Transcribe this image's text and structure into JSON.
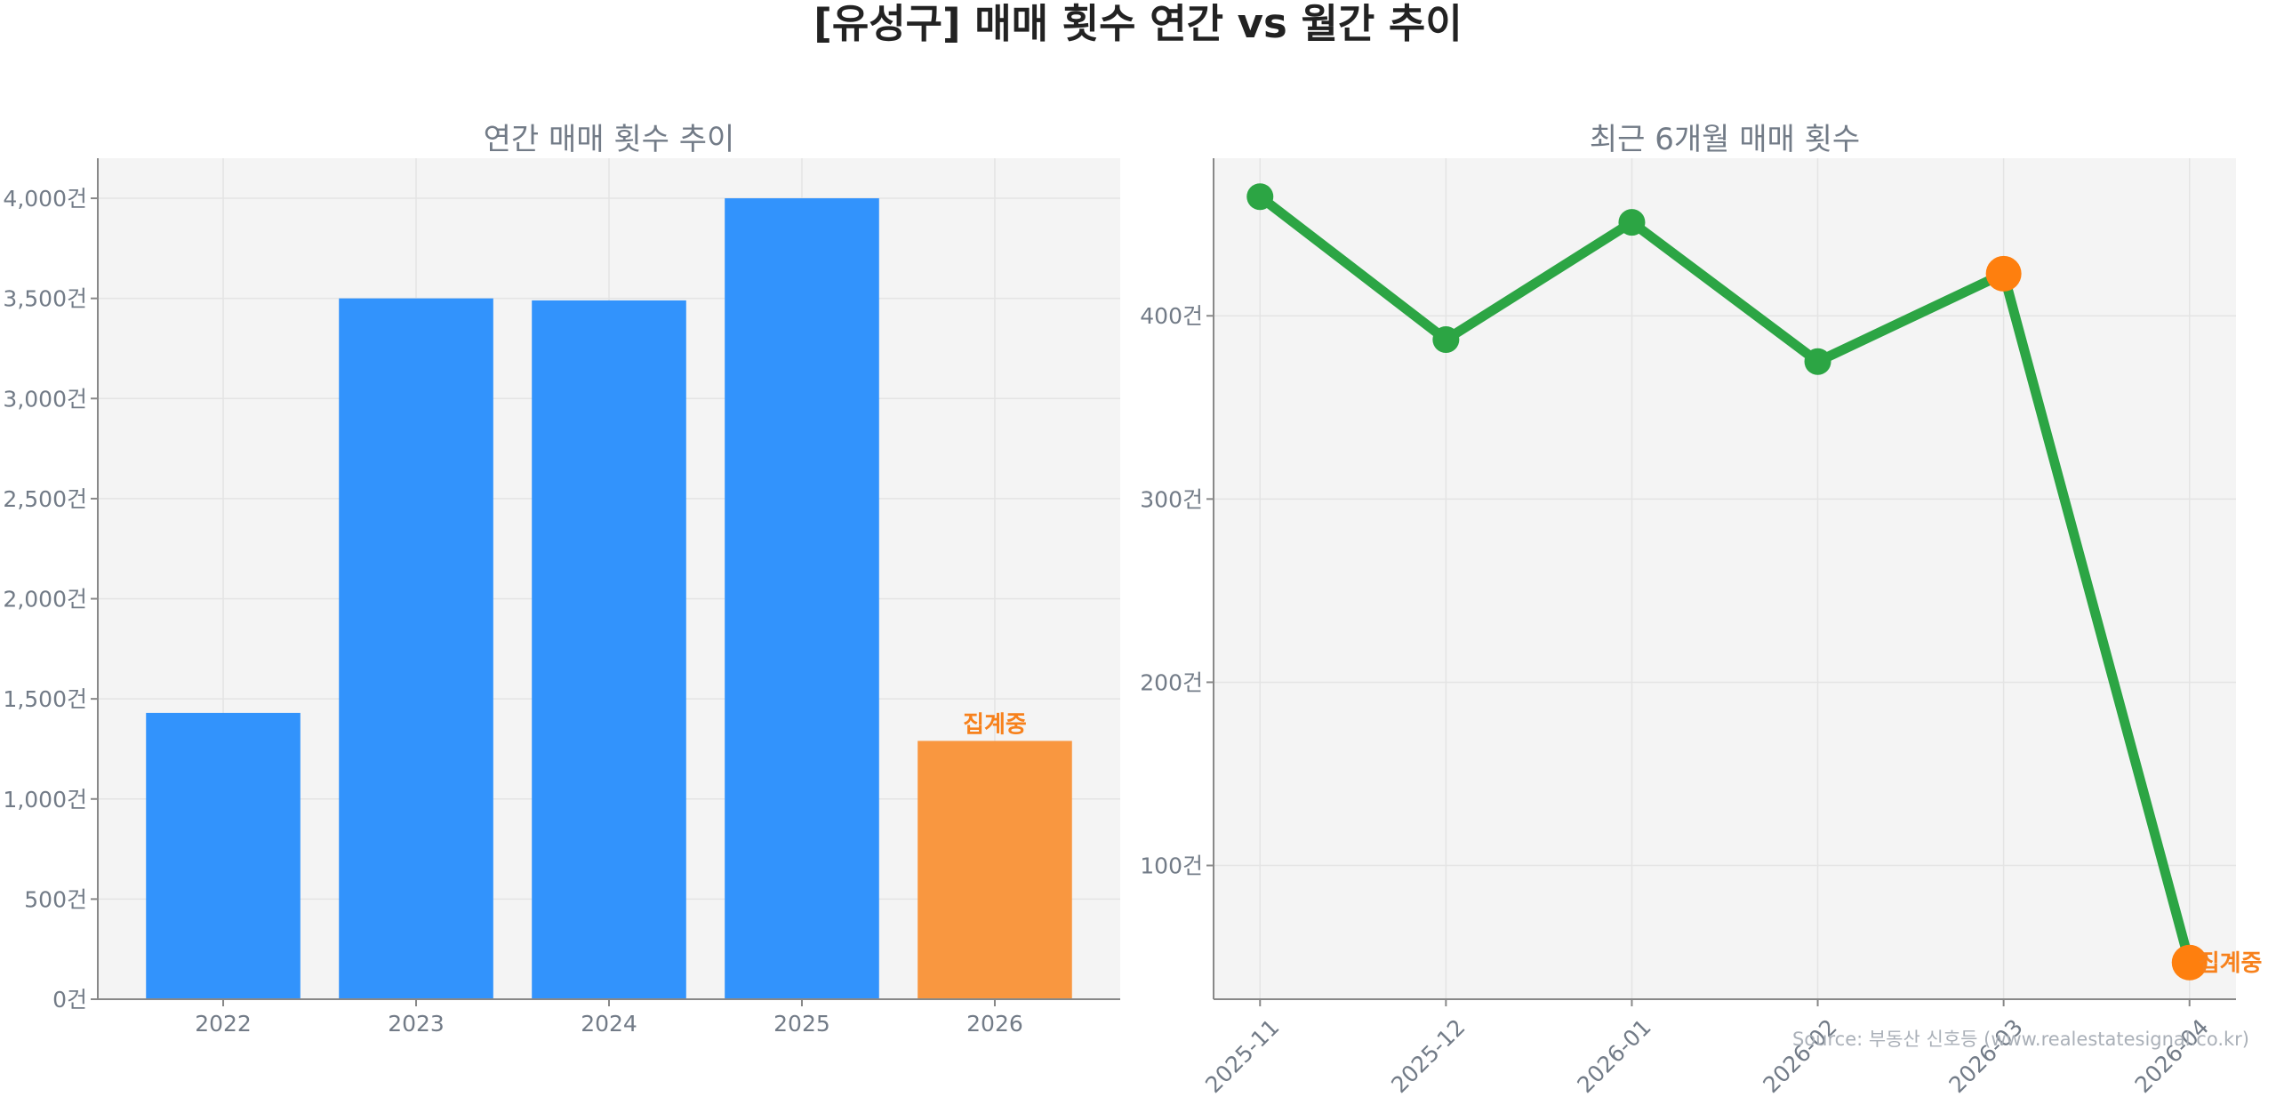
{
  "figure": {
    "title": "[유성구] 매매 횟수 연간 vs 월간 추이",
    "source": "Source: 부동산 신호등 (www.realestatesignal.co.kr)"
  },
  "colors": {
    "bar_blue": "#3293FC",
    "bar_orange": "#F99740",
    "line_green": "#2CA544",
    "marker_orange": "#FE7F0E",
    "label_orange": "#F7811C",
    "plot_bg": "#F4F4F4",
    "text_gray": "#727B87",
    "title_dark": "#222222"
  },
  "chart_data": [
    {
      "type": "bar",
      "title": "연간 매매 횟수 추이",
      "categories": [
        "2022",
        "2023",
        "2024",
        "2025",
        "2026"
      ],
      "values": [
        1430,
        3500,
        3490,
        4000,
        1290
      ],
      "highlight_index": 4,
      "highlight_label": "집계중",
      "ylim": [
        0,
        4200
      ],
      "yticks": [
        0,
        500,
        1000,
        1500,
        2000,
        2500,
        3000,
        3500,
        4000
      ],
      "ytick_labels": [
        "0건",
        "500건",
        "1,000건",
        "1,500건",
        "2,000건",
        "2,500건",
        "3,000건",
        "3,500건",
        "4,000건"
      ],
      "grid": true
    },
    {
      "type": "line",
      "title": "최근 6개월 매매 횟수",
      "x": [
        "2025-11",
        "2025-12",
        "2026-01",
        "2026-02",
        "2026-03",
        "2026-04"
      ],
      "values": [
        465,
        387,
        451,
        375,
        423,
        47
      ],
      "highlight_indices": [
        4,
        5
      ],
      "end_label": "집계중",
      "ylim": [
        27,
        486
      ],
      "yticks": [
        100,
        200,
        300,
        400
      ],
      "ytick_labels": [
        "100건",
        "200건",
        "300건",
        "400건"
      ],
      "grid": true
    }
  ]
}
